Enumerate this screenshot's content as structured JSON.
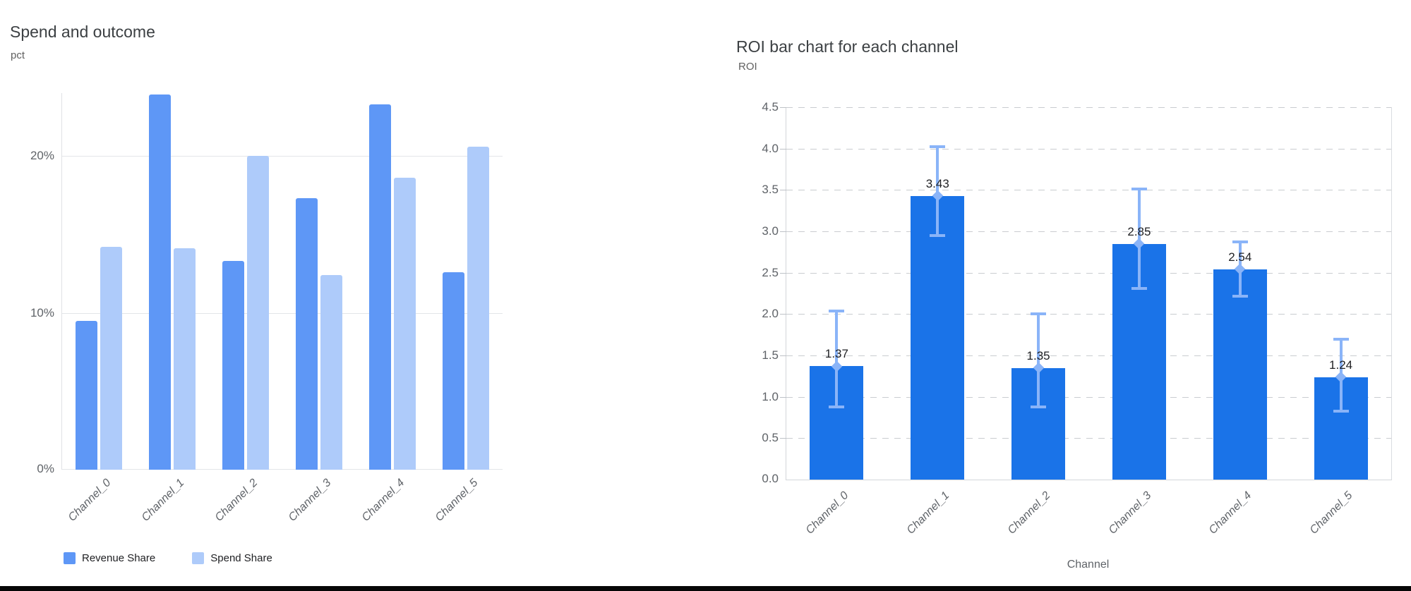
{
  "charts": {
    "left": {
      "title": "Spend and outcome",
      "unit": "pct"
    },
    "right": {
      "title": "ROI bar chart for each channel",
      "unit": "ROI",
      "x_axis_title": "Channel"
    }
  },
  "chart_data": [
    {
      "type": "bar",
      "title": "Spend and outcome",
      "ylabel": "pct",
      "xlabel": "",
      "categories": [
        "Channel_0",
        "Channel_1",
        "Channel_2",
        "Channel_3",
        "Channel_4",
        "Channel_5"
      ],
      "series": [
        {
          "name": "Revenue Share",
          "color": "#5e97f6",
          "values": [
            9.5,
            23.9,
            13.3,
            17.3,
            23.3,
            12.6
          ]
        },
        {
          "name": "Spend Share",
          "color": "#aecbfa",
          "values": [
            14.2,
            14.1,
            20.0,
            12.4,
            18.6,
            20.6
          ]
        }
      ],
      "ylim": [
        0,
        24
      ],
      "yticks": {
        "values": [
          0,
          10,
          20
        ],
        "labels": [
          "0%",
          "10%",
          "20%"
        ]
      },
      "grid": "solid",
      "legend_position": "bottom"
    },
    {
      "type": "bar",
      "title": "ROI bar chart for each channel",
      "ylabel": "ROI",
      "xlabel": "Channel",
      "categories": [
        "Channel_0",
        "Channel_1",
        "Channel_2",
        "Channel_3",
        "Channel_4",
        "Channel_5"
      ],
      "series": [
        {
          "name": "ROI",
          "color": "#1a73e8",
          "values": [
            1.37,
            3.43,
            1.35,
            2.85,
            2.54,
            1.24
          ]
        }
      ],
      "data_labels": [
        "1.37",
        "3.43",
        "1.35",
        "2.85",
        "2.54",
        "1.24"
      ],
      "error_bars": {
        "color": "#8ab4f8",
        "low": [
          0.88,
          2.95,
          0.88,
          2.31,
          2.22,
          0.83
        ],
        "high": [
          2.04,
          4.02,
          2.0,
          3.51,
          2.87,
          1.7
        ]
      },
      "ylim": [
        0,
        4.5
      ],
      "yticks": {
        "values": [
          0.0,
          0.5,
          1.0,
          1.5,
          2.0,
          2.5,
          3.0,
          3.5,
          4.0,
          4.5
        ],
        "labels": [
          "0.0",
          "0.5",
          "1.0",
          "1.5",
          "2.0",
          "2.5",
          "3.0",
          "3.5",
          "4.0",
          "4.5"
        ]
      },
      "grid": "dashed",
      "legend_position": "none"
    }
  ]
}
